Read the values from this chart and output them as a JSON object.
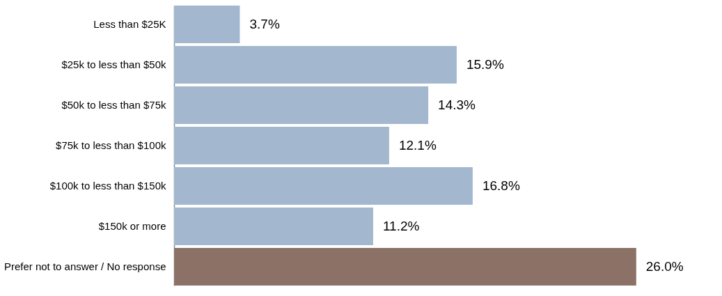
{
  "chart_data": {
    "type": "bar",
    "orientation": "horizontal",
    "categories": [
      "Less than $25K",
      "$25k to less than $50k",
      "$50k to less than $75k",
      "$75k to less than $100k",
      "$100k to less than $150k",
      "$150k or more ",
      "Prefer not to answer / No response"
    ],
    "values": [
      3.7,
      15.9,
      14.3,
      12.1,
      16.8,
      11.2,
      26.0
    ],
    "value_labels": [
      "3.7%",
      "15.9%",
      "14.3%",
      "12.1%",
      "16.8%",
      "11.2%",
      "26.0%"
    ],
    "colors": [
      "#a3b8ce",
      "#a3b8ce",
      "#a3b8ce",
      "#a3b8ce",
      "#a3b8ce",
      "#a3b8ce",
      "#8c7166"
    ]
  }
}
